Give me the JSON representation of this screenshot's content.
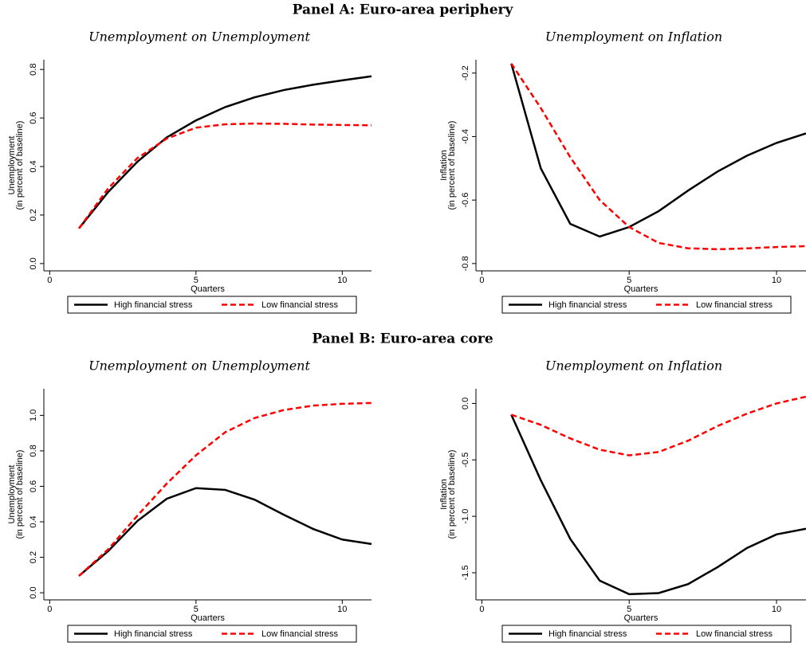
{
  "panels": [
    "Panel A: Euro-area periphery",
    "Panel B: Euro-area core"
  ],
  "chart_data": [
    {
      "type": "line",
      "title": "Unemployment on Unemployment",
      "xlabel": "Quarters",
      "ylabel": [
        "Unemployment",
        "(in percent of baseline)"
      ],
      "x": [
        1,
        2,
        3,
        4,
        5,
        6,
        7,
        8,
        9,
        10,
        11
      ],
      "series": [
        {
          "name": "High financial stress",
          "color": "#000000",
          "dashed": false,
          "values": [
            0.145,
            0.295,
            0.42,
            0.52,
            0.59,
            0.645,
            0.685,
            0.715,
            0.737,
            0.755,
            0.772
          ]
        },
        {
          "name": "Low financial stress",
          "color": "#ff0000",
          "dashed": true,
          "values": [
            0.145,
            0.31,
            0.435,
            0.515,
            0.56,
            0.574,
            0.577,
            0.576,
            0.573,
            0.571,
            0.57
          ]
        }
      ],
      "xlim": [
        -0.2,
        11
      ],
      "xticks": [
        0,
        5,
        10
      ],
      "ylim": [
        -0.03,
        0.84
      ],
      "yticks": [
        {
          "value": 0,
          "label": "0.0"
        },
        0.2,
        0.4,
        0.6,
        0.8
      ]
    },
    {
      "type": "line",
      "title": "Unemployment on Inflation",
      "xlabel": "Quarters",
      "ylabel": [
        "Inflation",
        "(in percent of baseline)"
      ],
      "x": [
        1,
        2,
        3,
        4,
        5,
        6,
        7,
        8,
        9,
        10,
        11
      ],
      "series": [
        {
          "name": "High financial stress",
          "color": "#000000",
          "dashed": false,
          "values": [
            -0.17,
            -0.5,
            -0.675,
            -0.715,
            -0.685,
            -0.635,
            -0.57,
            -0.51,
            -0.46,
            -0.42,
            -0.39
          ]
        },
        {
          "name": "Low financial stress",
          "color": "#ff0000",
          "dashed": true,
          "values": [
            -0.17,
            -0.31,
            -0.465,
            -0.6,
            -0.685,
            -0.735,
            -0.752,
            -0.755,
            -0.752,
            -0.748,
            -0.745
          ]
        }
      ],
      "xlim": [
        -0.2,
        11
      ],
      "xticks": [
        0,
        5,
        10
      ],
      "ylim": [
        -0.823,
        -0.158
      ],
      "yticks": [
        -0.8,
        -0.6,
        -0.4,
        -0.2
      ]
    },
    {
      "type": "line",
      "title": "Unemployment on Unemployment",
      "xlabel": "Quarters",
      "ylabel": [
        "Unemployment",
        "(in percent of baseline)"
      ],
      "x": [
        1,
        2,
        3,
        4,
        5,
        6,
        7,
        8,
        9,
        10,
        11
      ],
      "series": [
        {
          "name": "High financial stress",
          "color": "#000000",
          "dashed": false,
          "values": [
            0.095,
            0.235,
            0.405,
            0.53,
            0.59,
            0.58,
            0.525,
            0.44,
            0.36,
            0.3,
            0.275
          ]
        },
        {
          "name": "Low financial stress",
          "color": "#ff0000",
          "dashed": true,
          "values": [
            0.095,
            0.245,
            0.435,
            0.615,
            0.775,
            0.905,
            0.985,
            1.03,
            1.055,
            1.065,
            1.07
          ]
        }
      ],
      "xlim": [
        -0.2,
        11
      ],
      "xticks": [
        0,
        5,
        10
      ],
      "ylim": [
        -0.04,
        1.15
      ],
      "yticks": [
        {
          "value": 0,
          "label": "0.0"
        },
        0.2,
        0.4,
        0.6,
        0.8,
        {
          "value": 1,
          "label": "1.0"
        }
      ]
    },
    {
      "type": "line",
      "title": "Unemployment on Inflation",
      "xlabel": "Quarters",
      "ylabel": [
        "Inflation",
        "(in percent of baseline)"
      ],
      "x": [
        1,
        2,
        3,
        4,
        5,
        6,
        7,
        8,
        9,
        10,
        11
      ],
      "series": [
        {
          "name": "High financial stress",
          "color": "#000000",
          "dashed": false,
          "values": [
            -0.1,
            -0.68,
            -1.2,
            -1.57,
            -1.69,
            -1.68,
            -1.6,
            -1.45,
            -1.28,
            -1.16,
            -1.11
          ]
        },
        {
          "name": "Low financial stress",
          "color": "#ff0000",
          "dashed": true,
          "values": [
            -0.1,
            -0.19,
            -0.31,
            -0.41,
            -0.46,
            -0.43,
            -0.33,
            -0.2,
            -0.09,
            0.0,
            0.06
          ]
        }
      ],
      "xlim": [
        -0.2,
        11
      ],
      "xticks": [
        0,
        5,
        10
      ],
      "ylim": [
        -1.74,
        0.13
      ],
      "yticks": [
        -1.5,
        {
          "value": -1,
          "label": "-1.0"
        },
        -0.5,
        {
          "value": 0,
          "label": "0.0"
        }
      ]
    }
  ]
}
